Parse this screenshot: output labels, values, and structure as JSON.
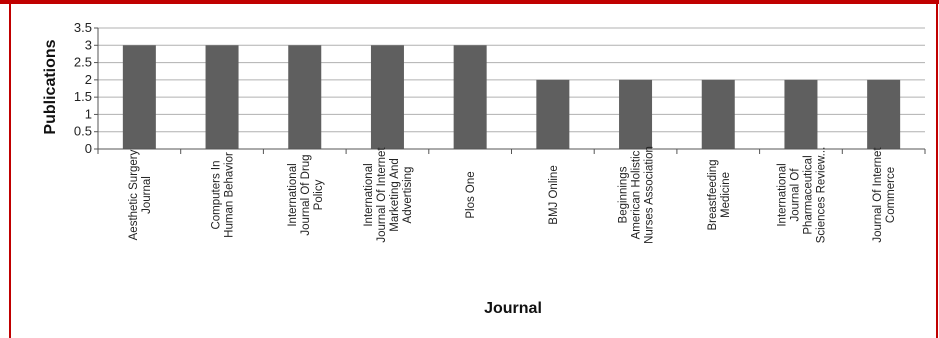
{
  "chart_data": {
    "type": "bar",
    "title": "",
    "xlabel": "Journal",
    "ylabel": "Publications",
    "ylim": [
      0,
      3.5
    ],
    "yticks": [
      "0",
      "0.5",
      "1",
      "1.5",
      "2",
      "2.5",
      "3",
      "3.5"
    ],
    "grid": true,
    "legend": "none",
    "bar_color": "#5f5f5f",
    "border_color": "#c00000",
    "categories": [
      [
        "Aesthetic Surgery",
        "Journal"
      ],
      [
        "Computers In",
        "Human Behavior"
      ],
      [
        "International",
        "Journal Of Drug",
        "Policy"
      ],
      [
        "International",
        "Journal Of Internet",
        "Marketing And",
        "Advertising"
      ],
      [
        "Plos One"
      ],
      [
        "BMJ Online"
      ],
      [
        "Beginnings",
        "American Holistic",
        "Nurses Association"
      ],
      [
        "Breastfeeding",
        "Medicine"
      ],
      [
        "International",
        "Journal Of",
        "Pharmaceutical",
        "Sciences Review..."
      ],
      [
        "Journal Of Internet",
        "Commerce"
      ]
    ],
    "values": [
      3,
      3,
      3,
      3,
      3,
      2,
      2,
      2,
      2,
      2
    ]
  }
}
